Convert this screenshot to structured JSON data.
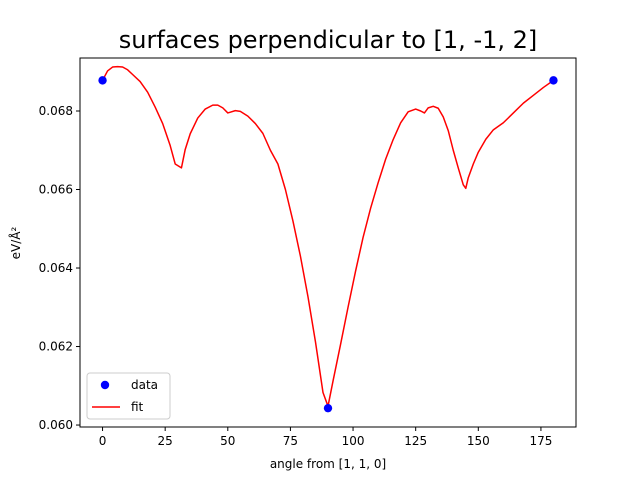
{
  "chart_data": {
    "type": "line",
    "title": "surfaces perpendicular to [1, -1, 2]",
    "xlabel": "angle from [1, 1, 0]",
    "ylabel": "eV/Å²",
    "xlim": [
      -9,
      189
    ],
    "ylim": [
      0.05995,
      0.06935
    ],
    "xticks": [
      0,
      25,
      50,
      75,
      100,
      125,
      150,
      175
    ],
    "yticks": [
      0.06,
      0.062,
      0.064,
      0.066,
      0.068
    ],
    "ytick_labels": [
      "0.060",
      "0.062",
      "0.064",
      "0.066",
      "0.068"
    ],
    "grid": false,
    "legend_position": "lower-left",
    "series": [
      {
        "name": "data",
        "kind": "scatter",
        "color": "#0000ff",
        "x": [
          0,
          90,
          180
        ],
        "y": [
          0.06878,
          0.06043,
          0.06878
        ]
      },
      {
        "name": "fit",
        "kind": "line",
        "color": "#ff0000",
        "x": [
          0,
          2,
          4,
          6,
          8,
          10,
          12,
          15,
          18,
          21,
          24,
          27,
          29,
          31.5,
          33,
          35,
          38,
          41,
          44,
          46,
          48,
          50,
          51,
          53,
          55,
          58,
          61,
          64,
          67,
          70,
          73,
          76,
          79,
          82,
          85,
          88,
          90,
          92,
          95,
          98,
          101,
          104,
          107,
          110,
          113,
          116,
          119,
          122,
          125,
          127,
          128.5,
          130,
          132,
          134,
          136,
          138,
          140,
          142,
          144,
          145,
          146,
          148,
          150,
          153,
          156,
          160,
          164,
          168,
          172,
          176,
          180
        ],
        "y": [
          0.06878,
          0.06902,
          0.06912,
          0.06913,
          0.06912,
          0.06905,
          0.06893,
          0.06875,
          0.06848,
          0.0681,
          0.06768,
          0.06712,
          0.06665,
          0.06655,
          0.06702,
          0.06742,
          0.06782,
          0.06805,
          0.06815,
          0.06815,
          0.06808,
          0.06795,
          0.06797,
          0.06801,
          0.06799,
          0.06787,
          0.06768,
          0.06743,
          0.067,
          0.06665,
          0.066,
          0.0652,
          0.0643,
          0.06327,
          0.06212,
          0.06083,
          0.06048,
          0.06112,
          0.06205,
          0.063,
          0.06392,
          0.06478,
          0.06552,
          0.06617,
          0.06677,
          0.06727,
          0.0677,
          0.06798,
          0.06805,
          0.068,
          0.06795,
          0.06808,
          0.06812,
          0.06807,
          0.06785,
          0.0675,
          0.067,
          0.06655,
          0.06612,
          0.06603,
          0.0663,
          0.06665,
          0.06695,
          0.06728,
          0.06752,
          0.0677,
          0.06795,
          0.0682,
          0.0684,
          0.0686,
          0.06878
        ]
      }
    ]
  }
}
